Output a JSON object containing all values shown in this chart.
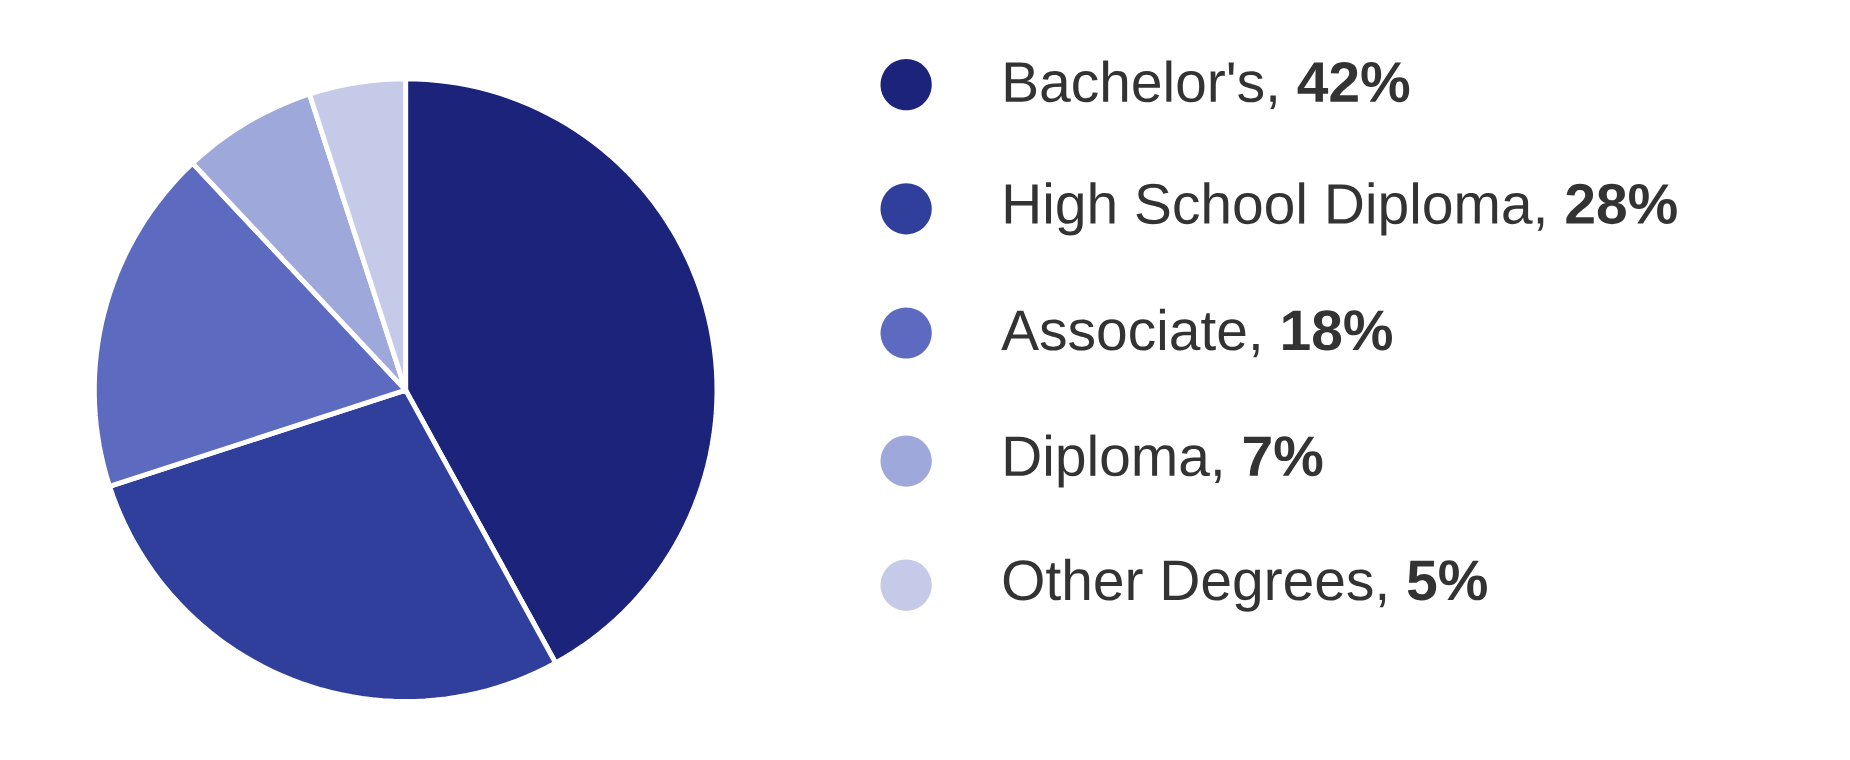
{
  "chart_data": {
    "type": "pie",
    "categories": [
      "Bachelor's, **42%**",
      "High School Diploma, **28%**",
      "Associate, **18%**",
      "Diploma, **7%**",
      "Other Degrees, **5%**"
    ],
    "values": [
      42,
      28,
      18,
      7,
      5
    ],
    "colors": [
      "#1b237a",
      "#303e9c",
      "#5c6bc0",
      "#9fa8da",
      "#c5cae9"
    ],
    "legend": "right"
  }
}
